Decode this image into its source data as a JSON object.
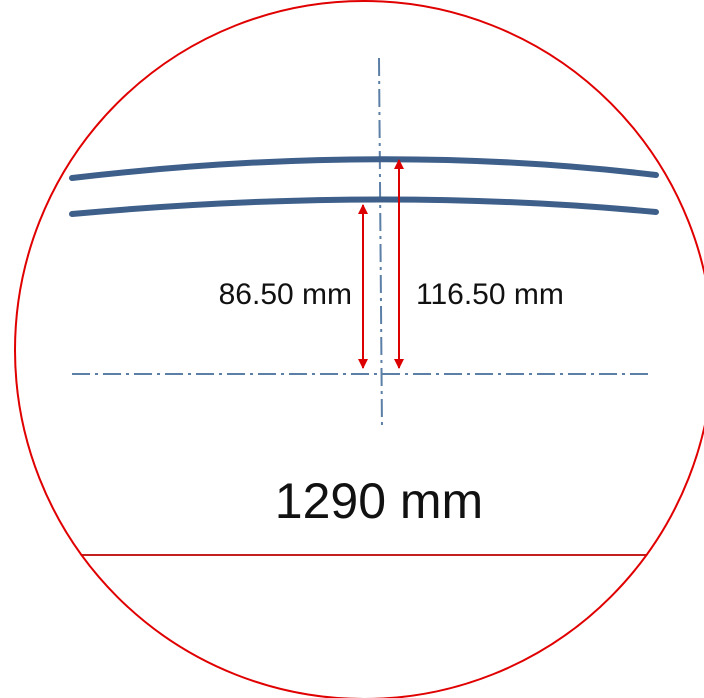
{
  "dimensions": {
    "inner_offset_label": "86.50 mm",
    "outer_offset_label": "116.50 mm",
    "diameter_label": "1290 mm"
  },
  "colors": {
    "outline": "#e00000",
    "rail": "#3e5f8a",
    "centerline": "#5b7fa6",
    "arrow": "#dd0000",
    "diameter_line": "#c42020"
  }
}
